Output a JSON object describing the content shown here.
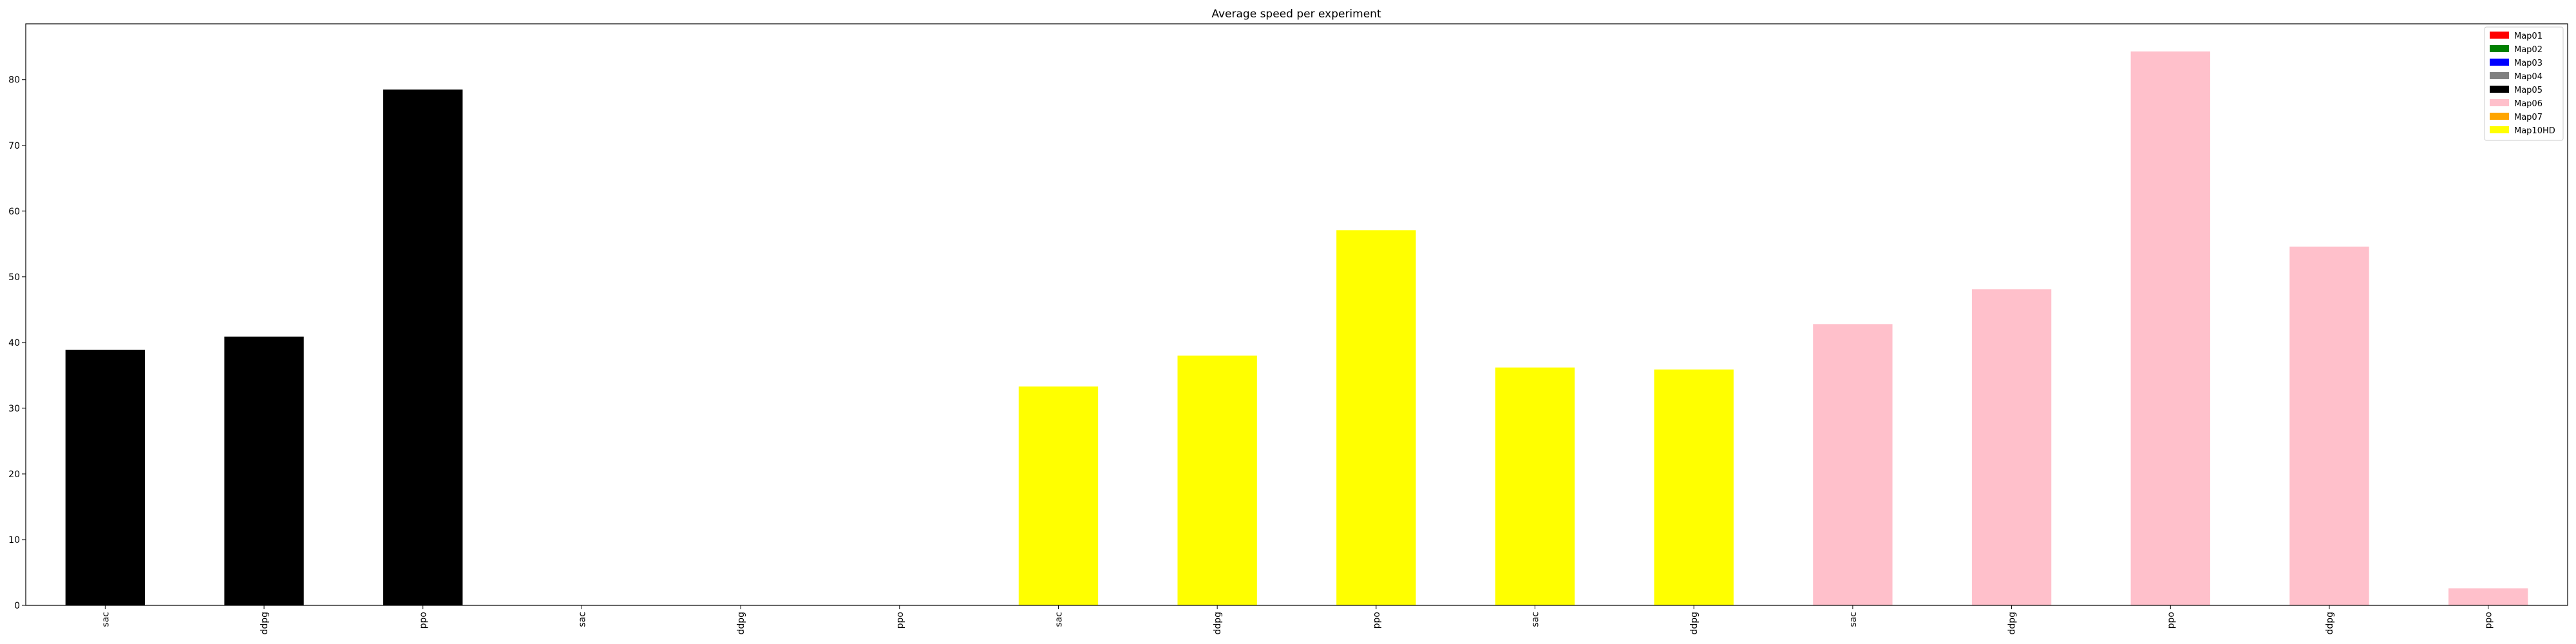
{
  "chart_data": {
    "type": "bar",
    "title": "Average speed per experiment",
    "xlabel": "",
    "ylabel": "",
    "ylim": [
      0,
      88.5
    ],
    "yticks": [
      0,
      10,
      20,
      30,
      40,
      50,
      60,
      70,
      80
    ],
    "grid": false,
    "legend_position": "top-right",
    "legend": [
      {
        "name": "Map01",
        "color": "#ff0000"
      },
      {
        "name": "Map02",
        "color": "#008000"
      },
      {
        "name": "Map03",
        "color": "#0000ff"
      },
      {
        "name": "Map04",
        "color": "#808080"
      },
      {
        "name": "Map05",
        "color": "#000000"
      },
      {
        "name": "Map06",
        "color": "#ffc0cb"
      },
      {
        "name": "Map07",
        "color": "#ffa500"
      },
      {
        "name": "Map10HD",
        "color": "#ffff00"
      }
    ],
    "categories": [
      "sac",
      "ddpg",
      "ppo",
      "sac",
      "ddpg",
      "ppo",
      "sac",
      "ddpg",
      "ppo",
      "sac",
      "ddpg",
      "sac",
      "ddpg",
      "ppo",
      "ddpg",
      "ppo"
    ],
    "bars": [
      {
        "value": 38.9,
        "color": "#000000"
      },
      {
        "value": 40.9,
        "color": "#000000"
      },
      {
        "value": 78.5,
        "color": "#000000"
      },
      {
        "value": 0,
        "color": "#000000"
      },
      {
        "value": 0,
        "color": "#000000"
      },
      {
        "value": 0,
        "color": "#000000"
      },
      {
        "value": 33.3,
        "color": "#ffff00"
      },
      {
        "value": 38.0,
        "color": "#ffff00"
      },
      {
        "value": 57.1,
        "color": "#ffff00"
      },
      {
        "value": 36.2,
        "color": "#ffff00"
      },
      {
        "value": 35.9,
        "color": "#ffff00"
      },
      {
        "value": 42.8,
        "color": "#ffc0cb"
      },
      {
        "value": 48.1,
        "color": "#ffc0cb"
      },
      {
        "value": 84.3,
        "color": "#ffc0cb"
      },
      {
        "value": 54.6,
        "color": "#ffc0cb"
      },
      {
        "value": 2.6,
        "color": "#ffc0cb"
      }
    ]
  }
}
